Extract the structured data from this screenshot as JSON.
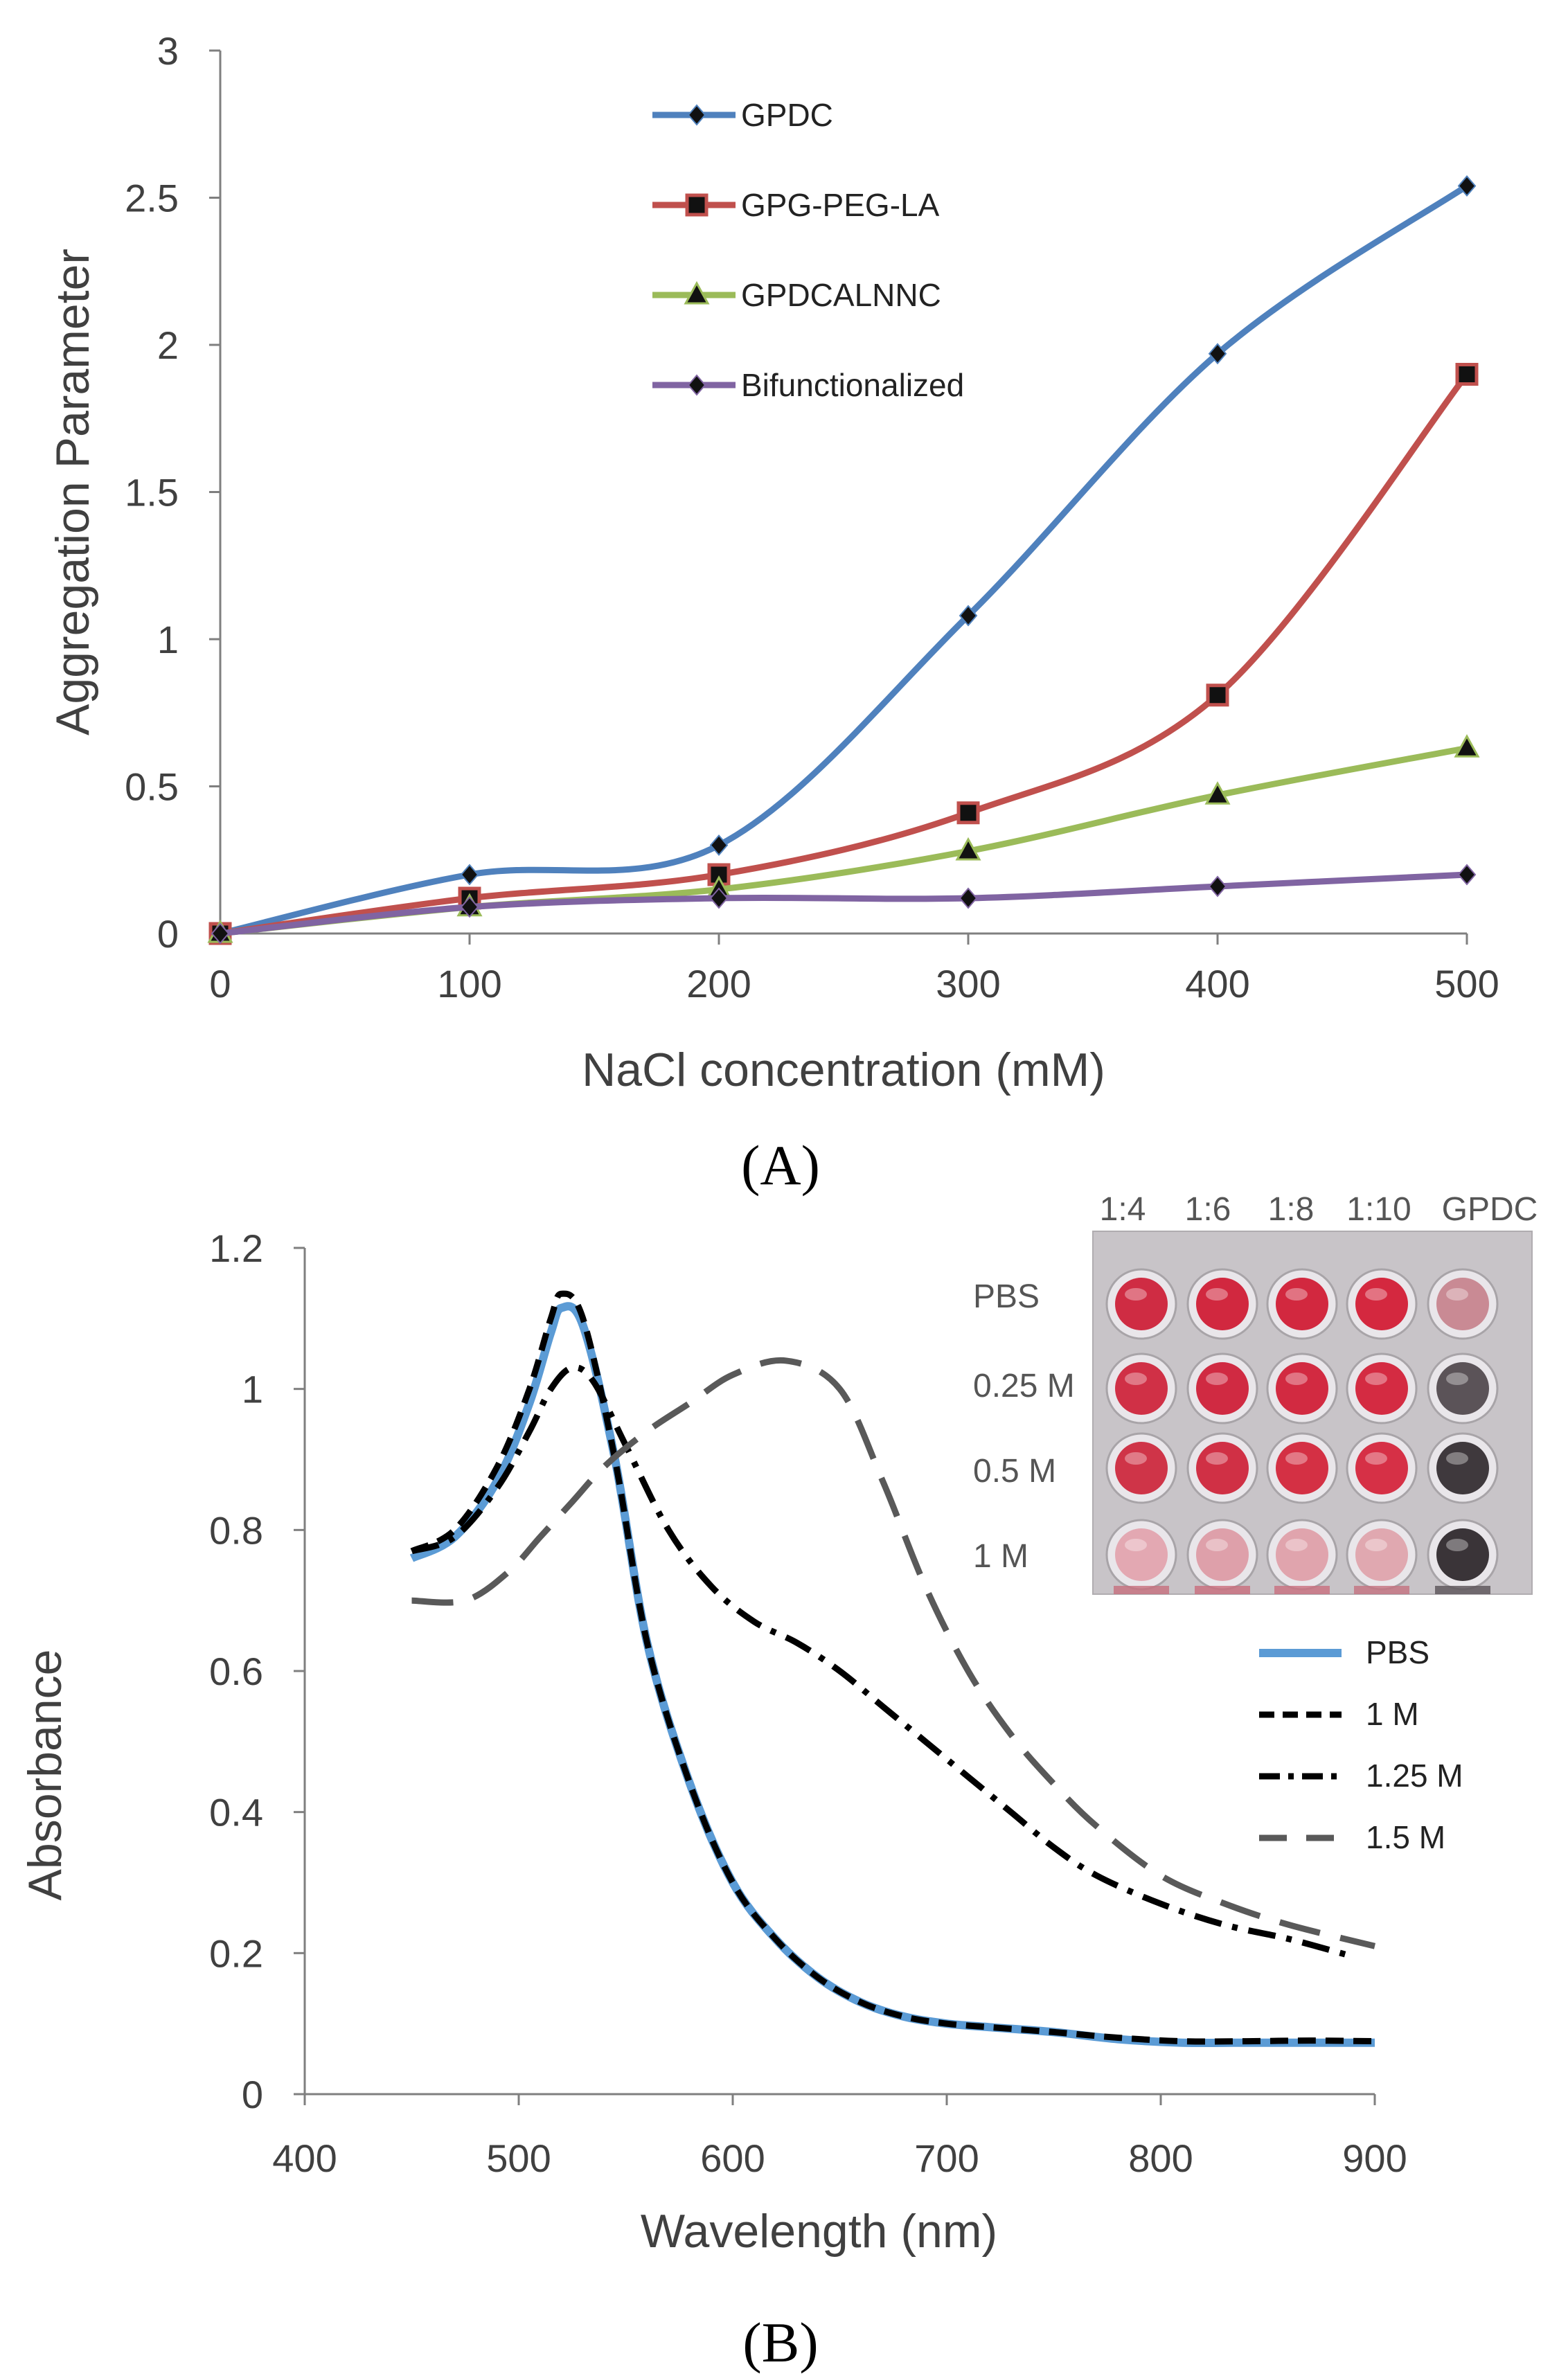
{
  "chart_data": [
    {
      "type": "line",
      "panel_label": "A",
      "xlabel": "NaCl concentration (mM)",
      "ylabel": "Aggregation Parameter",
      "xlim": [
        0,
        500
      ],
      "ylim": [
        0,
        3
      ],
      "x_ticks": [
        "0",
        "100",
        "200",
        "300",
        "400",
        "500"
      ],
      "y_ticks": [
        "0",
        "0.5",
        "1",
        "1.5",
        "2",
        "2.5",
        "3"
      ],
      "x": [
        0,
        100,
        200,
        300,
        400,
        500
      ],
      "legend_position": "top-left (inside plot)",
      "series": [
        {
          "name": "GPDC",
          "marker": "diamond",
          "color": "#4f81bd",
          "values": [
            0,
            0.2,
            0.3,
            1.08,
            1.97,
            2.54
          ]
        },
        {
          "name": "GPG-PEG-LA",
          "marker": "square",
          "color": "#c0504d",
          "values": [
            0,
            0.12,
            0.2,
            0.41,
            0.81,
            1.9
          ]
        },
        {
          "name": "GPDCALNNC",
          "marker": "triangle",
          "color": "#9bbb59",
          "values": [
            0,
            0.09,
            0.15,
            0.28,
            0.47,
            0.63
          ]
        },
        {
          "name": "Bifunctionalized",
          "marker": "diamond",
          "color": "#8064a2",
          "values": [
            0,
            0.09,
            0.12,
            0.12,
            0.16,
            0.2
          ]
        }
      ]
    },
    {
      "type": "line",
      "panel_label": "B",
      "xlabel": "Wavelength (nm)",
      "ylabel": "Absorbance",
      "xlim": [
        400,
        900
      ],
      "ylim": [
        0,
        1.2
      ],
      "x_ticks": [
        "400",
        "500",
        "600",
        "700",
        "800",
        "900"
      ],
      "y_ticks": [
        "0",
        "0.2",
        "0.4",
        "0.6",
        "0.8",
        "1",
        "1.2"
      ],
      "legend_position": "right (inside plot)",
      "series": [
        {
          "name": "PBS",
          "style": "solid",
          "color": "#5b9bd5",
          "x": [
            450,
            470,
            490,
            505,
            515,
            520,
            530,
            545,
            560,
            580,
            600,
            620,
            640,
            660,
            680,
            700,
            720,
            750,
            780,
            810,
            840,
            870,
            900
          ],
          "y": [
            0.76,
            0.79,
            0.87,
            0.98,
            1.08,
            1.115,
            1.09,
            0.9,
            0.64,
            0.44,
            0.3,
            0.22,
            0.165,
            0.13,
            0.11,
            0.1,
            0.095,
            0.088,
            0.078,
            0.073,
            0.073,
            0.073,
            0.073
          ]
        },
        {
          "name": "1 M",
          "style": "dashed",
          "color": "#000000",
          "x": [
            450,
            470,
            490,
            505,
            515,
            520,
            530,
            545,
            560,
            580,
            600,
            620,
            640,
            660,
            680,
            700,
            720,
            750,
            780,
            810,
            840,
            870,
            900
          ],
          "y": [
            0.77,
            0.8,
            0.89,
            1.0,
            1.1,
            1.135,
            1.1,
            0.9,
            0.64,
            0.44,
            0.3,
            0.22,
            0.165,
            0.13,
            0.11,
            0.1,
            0.095,
            0.088,
            0.08,
            0.075,
            0.075,
            0.076,
            0.075
          ]
        },
        {
          "name": "1.25 M",
          "style": "dash-dot",
          "color": "#000000",
          "x": [
            450,
            470,
            490,
            505,
            515,
            525,
            535,
            550,
            570,
            590,
            610,
            630,
            650,
            670,
            690,
            710,
            730,
            750,
            770,
            800,
            830,
            860,
            890
          ],
          "y": [
            0.77,
            0.79,
            0.86,
            0.94,
            1.0,
            1.03,
            1.01,
            0.92,
            0.8,
            0.72,
            0.67,
            0.64,
            0.6,
            0.55,
            0.5,
            0.45,
            0.4,
            0.35,
            0.31,
            0.27,
            0.24,
            0.22,
            0.195
          ]
        },
        {
          "name": "1.5 M",
          "style": "long-dash",
          "color": "#595959",
          "x": [
            450,
            475,
            495,
            510,
            525,
            540,
            560,
            580,
            600,
            625,
            650,
            670,
            690,
            710,
            730,
            750,
            770,
            800,
            830,
            860,
            900
          ],
          "y": [
            0.7,
            0.7,
            0.74,
            0.79,
            0.84,
            0.89,
            0.94,
            0.98,
            1.02,
            1.04,
            1.0,
            0.87,
            0.72,
            0.6,
            0.51,
            0.44,
            0.38,
            0.31,
            0.27,
            0.24,
            0.21
          ]
        }
      ],
      "inset": {
        "columns": [
          "1:4",
          "1:6",
          "1:8",
          "1:10",
          "GPDC"
        ],
        "rows": [
          "PBS",
          "0.25 M",
          "0.5 M",
          "1 M"
        ],
        "well_colors": [
          [
            "#cf2c43",
            "#d1283f",
            "#d2283f",
            "#d4283f",
            "#c98a94"
          ],
          [
            "#d03046",
            "#d02a42",
            "#d22a41",
            "#d42b42",
            "#5b5358"
          ],
          [
            "#cf3448",
            "#d03045",
            "#d43044",
            "#d63046",
            "#3f393d"
          ],
          [
            "#e3a8b2",
            "#dea0aa",
            "#e0a4ad",
            "#e0a8b0",
            "#3a3438"
          ]
        ]
      }
    }
  ]
}
